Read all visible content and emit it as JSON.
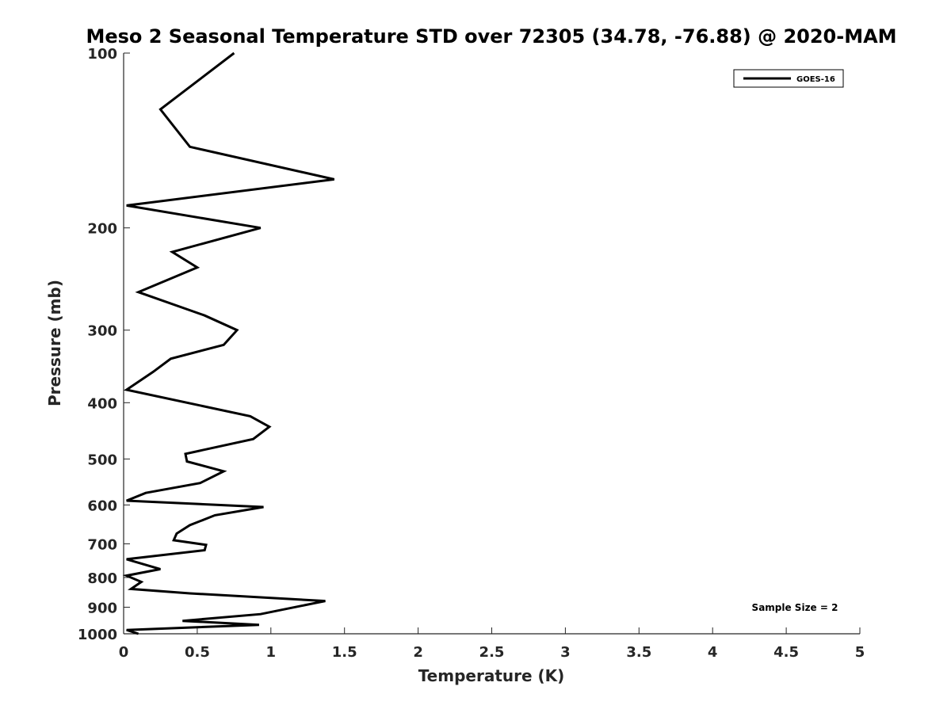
{
  "chart_data": {
    "type": "line",
    "title": "Meso 2 Seasonal Temperature STD over 72305 (34.78, -76.88) @ 2020-MAM",
    "xlabel": "Temperature (K)",
    "ylabel": "Pressure (mb)",
    "xlim": [
      0,
      5
    ],
    "ylim": [
      100,
      1000
    ],
    "y_scale": "log",
    "y_reversed": true,
    "grid": false,
    "x_ticks": [
      0,
      0.5,
      1,
      1.5,
      2,
      2.5,
      3,
      3.5,
      4,
      4.5,
      5
    ],
    "x_tick_labels": [
      "0",
      "0.5",
      "1",
      "1.5",
      "2",
      "2.5",
      "3",
      "3.5",
      "4",
      "4.5",
      "5"
    ],
    "y_ticks": [
      100,
      200,
      300,
      400,
      500,
      600,
      700,
      800,
      900,
      1000
    ],
    "y_tick_labels": [
      "100",
      "200",
      "300",
      "400",
      "500",
      "600",
      "700",
      "800",
      "900",
      "1000"
    ],
    "legend_position": "top-right",
    "annotation": "Sample Size = 2",
    "series": [
      {
        "name": "GOES-16",
        "color": "#000000",
        "x": [
          0.75,
          0.25,
          0.45,
          1.43,
          0.02,
          0.93,
          0.33,
          0.5,
          0.1,
          0.55,
          0.77,
          0.68,
          0.32,
          0.2,
          0.02,
          0.86,
          0.99,
          0.88,
          0.42,
          0.43,
          0.68,
          0.52,
          0.15,
          0.02,
          0.95,
          0.62,
          0.45,
          0.36,
          0.34,
          0.56,
          0.55,
          0.02,
          0.25,
          0.02,
          0.12,
          0.05,
          0.45,
          1.37,
          0.93,
          0.4,
          0.92,
          0.02,
          0.1
        ],
        "y": [
          100,
          125,
          145,
          165,
          183,
          200,
          220,
          234,
          258,
          283,
          300,
          318,
          336,
          354,
          380,
          422,
          440,
          462,
          490,
          505,
          525,
          550,
          572,
          590,
          605,
          625,
          650,
          672,
          690,
          703,
          718,
          744,
          774,
          794,
          814,
          837,
          852,
          878,
          925,
          950,
          965,
          985,
          1000
        ]
      }
    ]
  }
}
